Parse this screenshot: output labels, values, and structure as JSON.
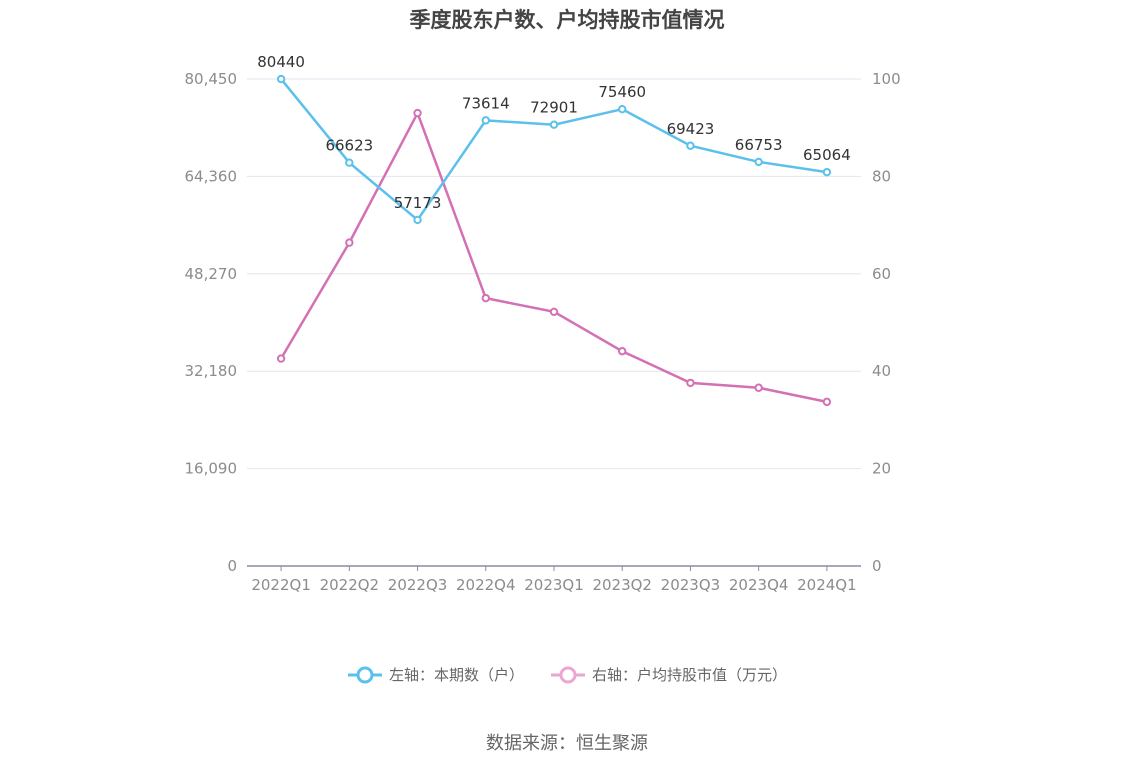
{
  "title": "季度股东户数、户均持股市值情况",
  "source": "数据来源：恒生聚源",
  "colors": {
    "left_series": "#5BC0EB",
    "right_series": "#D470B4",
    "grid": "#E3E6F0",
    "axis_text": "#8C8C8C",
    "label_text": "#333333"
  },
  "chart_data": {
    "type": "line",
    "categories": [
      "2022Q1",
      "2022Q2",
      "2022Q3",
      "2022Q4",
      "2023Q1",
      "2023Q2",
      "2023Q3",
      "2023Q4",
      "2024Q1"
    ],
    "left_axis": {
      "ylim": [
        0,
        80450
      ],
      "ticks": [
        "0",
        "16,090",
        "32,180",
        "48,270",
        "64,360",
        "80,450"
      ]
    },
    "right_axis": {
      "ylim": [
        0,
        100
      ],
      "ticks": [
        "0",
        "20",
        "40",
        "60",
        "80",
        "100"
      ]
    },
    "series": [
      {
        "name": "左轴：本期数（户）",
        "axis": "left",
        "values": [
          80440,
          66623,
          57173,
          73614,
          72901,
          75460,
          69423,
          66753,
          65064
        ],
        "labels": [
          "80440",
          "66623",
          "57173",
          "73614",
          "72901",
          "75460",
          "69423",
          "66753",
          "65064"
        ]
      },
      {
        "name": "右轴：户均持股市值（万元）",
        "axis": "right",
        "values": [
          42.6,
          66.4,
          93.0,
          55.0,
          52.2,
          44.1,
          37.6,
          36.6,
          33.7
        ]
      }
    ],
    "grid": true,
    "legend_position": "bottom-center"
  }
}
